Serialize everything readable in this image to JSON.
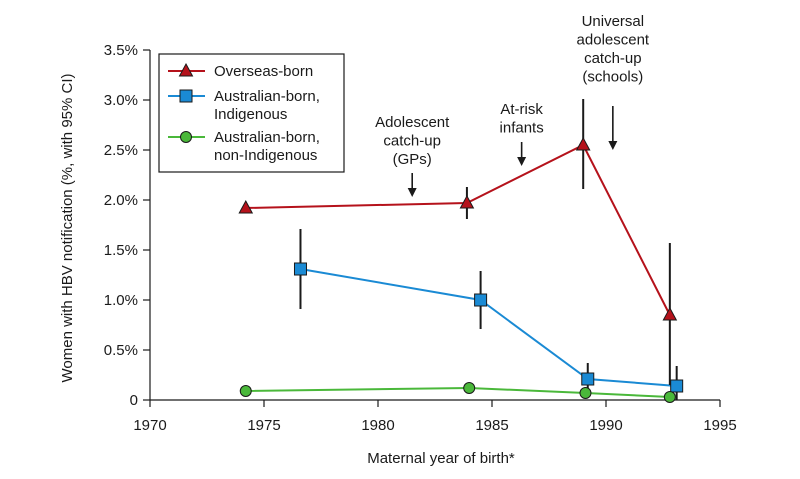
{
  "chart_data": {
    "type": "line",
    "xlabel": "Maternal year of birth*",
    "ylabel": "Women with HBV notification (%, with 95% CI)",
    "xlim": [
      1970,
      1995
    ],
    "ylim": [
      0,
      3.5
    ],
    "x_ticks": [
      1970,
      1975,
      1980,
      1985,
      1990,
      1995
    ],
    "x_tick_labels": [
      "1970",
      "1975",
      "1980",
      "1985",
      "1990",
      "1995"
    ],
    "y_ticks": [
      0,
      0.5,
      1.0,
      1.5,
      2.0,
      2.5,
      3.0,
      3.5
    ],
    "y_tick_labels": [
      "0",
      "0.5%",
      "1.0%",
      "1.5%",
      "2.0%",
      "2.5%",
      "3.0%",
      "3.5%"
    ],
    "grid": false,
    "legend_position": "top-left",
    "series": [
      {
        "name": "Overseas-born",
        "color": "#b5121b",
        "marker": "triangle",
        "points": [
          {
            "x": 1974.2,
            "y": 1.92
          },
          {
            "x": 1983.9,
            "y": 1.97,
            "ci": [
              1.81,
              2.13
            ]
          },
          {
            "x": 1989.0,
            "y": 2.55,
            "ci": [
              2.11,
              3.01
            ]
          },
          {
            "x": 1992.8,
            "y": 0.85,
            "ci": [
              0.15,
              1.57
            ]
          }
        ]
      },
      {
        "name": [
          "Australian-born,",
          "Indigenous"
        ],
        "color": "#1a8ad4",
        "marker": "square",
        "points": [
          {
            "x": 1976.6,
            "y": 1.31,
            "ci": [
              0.91,
              1.71
            ]
          },
          {
            "x": 1984.5,
            "y": 1.0,
            "ci": [
              0.71,
              1.29
            ]
          },
          {
            "x": 1989.2,
            "y": 0.21,
            "ci": [
              0.06,
              0.37
            ]
          },
          {
            "x": 1993.1,
            "y": 0.14,
            "ci": [
              0.0,
              0.34
            ]
          }
        ]
      },
      {
        "name": [
          "Australian-born,",
          "non-Indigenous"
        ],
        "color": "#4ab83a",
        "marker": "circle",
        "points": [
          {
            "x": 1974.2,
            "y": 0.09
          },
          {
            "x": 1984.0,
            "y": 0.12
          },
          {
            "x": 1989.1,
            "y": 0.07
          },
          {
            "x": 1992.8,
            "y": 0.03
          }
        ]
      }
    ],
    "annotations": [
      {
        "lines": [
          "Adolescent",
          "catch-up",
          "(GPs)"
        ],
        "arrow_x": 1981.5
      },
      {
        "lines": [
          "At-risk",
          "infants"
        ],
        "arrow_x": 1986.3
      },
      {
        "lines": [
          "Universal",
          "adolescent",
          "catch-up",
          "(schools)"
        ],
        "arrow_x": 1990.3
      }
    ]
  }
}
